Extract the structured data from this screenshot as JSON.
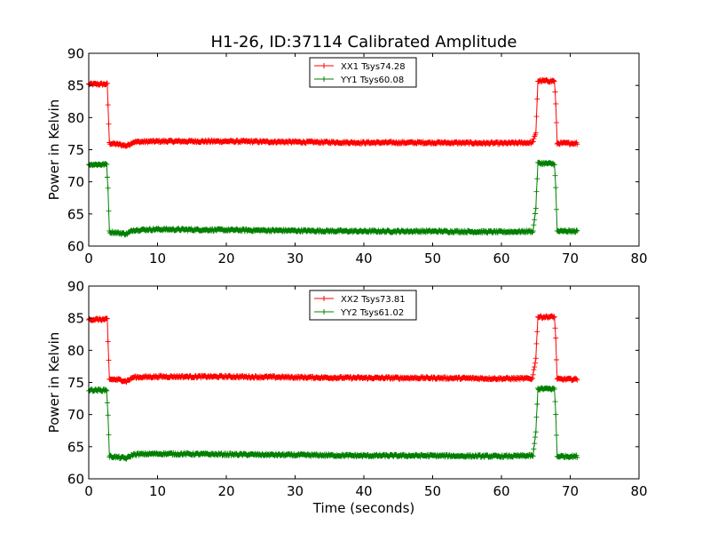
{
  "figure": {
    "title": "H1-26, ID:37114 Calibrated Amplitude"
  },
  "chart_data": [
    {
      "type": "line",
      "title": "H1-26, ID:37114 Calibrated Amplitude",
      "xlabel": "",
      "ylabel": "Power in Kelvin",
      "xlim": [
        0,
        80
      ],
      "ylim": [
        60,
        90
      ],
      "xticks": [
        "0",
        "10",
        "20",
        "30",
        "40",
        "50",
        "60",
        "70",
        "80"
      ],
      "yticks": [
        "60",
        "65",
        "70",
        "75",
        "80",
        "85",
        "90"
      ],
      "grid": false,
      "legend_position": "top-center",
      "marker": "+",
      "series": [
        {
          "name": "XX1 Tsys74.28",
          "color": "#ff0000",
          "points": [
            [
              0,
              85.2
            ],
            [
              2.7,
              85.2
            ],
            [
              2.8,
              82
            ],
            [
              3,
              76
            ],
            [
              4.5,
              75.8
            ],
            [
              5.5,
              75.6
            ],
            [
              6.5,
              76.2
            ],
            [
              10,
              76.3
            ],
            [
              20,
              76.3
            ],
            [
              30,
              76.2
            ],
            [
              40,
              76.1
            ],
            [
              50,
              76.1
            ],
            [
              60,
              76
            ],
            [
              64.5,
              76.1
            ],
            [
              65,
              77.5
            ],
            [
              65.3,
              85.7
            ],
            [
              67.7,
              85.7
            ],
            [
              67.9,
              82.1
            ],
            [
              68.1,
              76
            ],
            [
              71,
              76
            ]
          ]
        },
        {
          "name": "YY1 Tsys60.08",
          "color": "#008000",
          "points": [
            [
              0,
              72.7
            ],
            [
              2.6,
              72.7
            ],
            [
              2.8,
              69
            ],
            [
              3,
              62.2
            ],
            [
              5.5,
              61.9
            ],
            [
              6.5,
              62.5
            ],
            [
              10,
              62.6
            ],
            [
              20,
              62.5
            ],
            [
              30,
              62.4
            ],
            [
              40,
              62.3
            ],
            [
              50,
              62.3
            ],
            [
              60,
              62.2
            ],
            [
              64.6,
              62.3
            ],
            [
              65,
              66
            ],
            [
              65.3,
              72.9
            ],
            [
              67.7,
              72.8
            ],
            [
              67.9,
              69
            ],
            [
              68.1,
              62.3
            ],
            [
              71,
              62.3
            ]
          ]
        }
      ]
    },
    {
      "type": "line",
      "title": "",
      "xlabel": "Time (seconds)",
      "ylabel": "Power in Kelvin",
      "xlim": [
        0,
        80
      ],
      "ylim": [
        60,
        90
      ],
      "xticks": [
        "0",
        "10",
        "20",
        "30",
        "40",
        "50",
        "60",
        "70",
        "80"
      ],
      "yticks": [
        "60",
        "65",
        "70",
        "75",
        "80",
        "85",
        "90"
      ],
      "grid": false,
      "legend_position": "top-center",
      "marker": "+",
      "series": [
        {
          "name": "XX2 Tsys73.81",
          "color": "#ff0000",
          "points": [
            [
              0,
              84.8
            ],
            [
              2.7,
              84.8
            ],
            [
              2.8,
              81.3
            ],
            [
              3,
              75.5
            ],
            [
              4.5,
              75.4
            ],
            [
              5.5,
              75.2
            ],
            [
              6.5,
              75.8
            ],
            [
              10,
              75.9
            ],
            [
              20,
              75.9
            ],
            [
              30,
              75.8
            ],
            [
              40,
              75.7
            ],
            [
              50,
              75.7
            ],
            [
              60,
              75.6
            ],
            [
              64.5,
              75.6
            ],
            [
              65,
              78.8
            ],
            [
              65.3,
              85.2
            ],
            [
              67.7,
              85.2
            ],
            [
              67.9,
              81.8
            ],
            [
              68.1,
              75.5
            ],
            [
              71,
              75.5
            ]
          ]
        },
        {
          "name": "YY2 Tsys61.02",
          "color": "#008000",
          "points": [
            [
              0,
              73.8
            ],
            [
              2.6,
              73.8
            ],
            [
              2.8,
              70
            ],
            [
              3,
              63.5
            ],
            [
              5.5,
              63.2
            ],
            [
              6.5,
              63.8
            ],
            [
              10,
              63.9
            ],
            [
              20,
              63.8
            ],
            [
              30,
              63.7
            ],
            [
              40,
              63.6
            ],
            [
              50,
              63.6
            ],
            [
              60,
              63.5
            ],
            [
              64.6,
              63.6
            ],
            [
              65,
              67.3
            ],
            [
              65.3,
              74
            ],
            [
              67.7,
              74
            ],
            [
              67.9,
              70
            ],
            [
              68.1,
              63.5
            ],
            [
              71,
              63.5
            ]
          ]
        }
      ]
    }
  ]
}
